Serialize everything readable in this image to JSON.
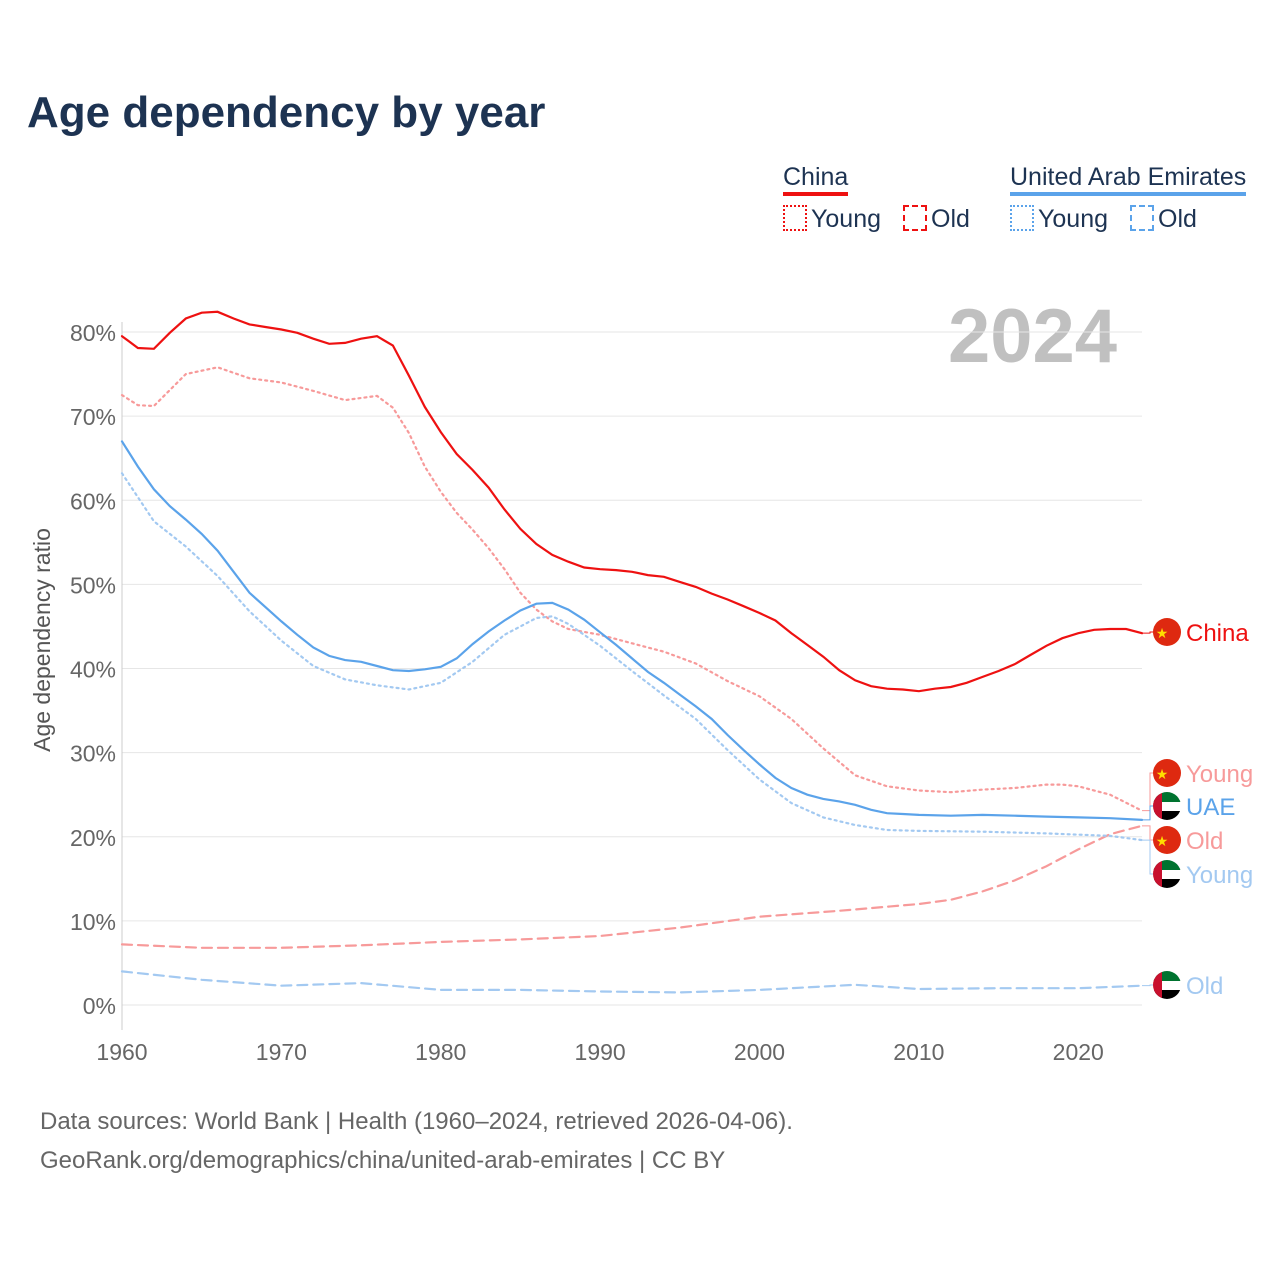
{
  "title": "Age dependency by year",
  "legend": {
    "china": {
      "name": "China",
      "young": "Young",
      "old": "Old",
      "color": "#ee1111",
      "light": "#f79a9a"
    },
    "uae": {
      "name": "United Arab Emirates",
      "young": "Young",
      "old": "Old",
      "color": "#5ba3ea",
      "light": "#a3c9f1"
    }
  },
  "footer": {
    "line1": "Data sources: World Bank | Health (1960–2024, retrieved 2026-04-06).",
    "line2": "GeoRank.org/demographics/china/united-arab-emirates | CC BY"
  },
  "chart_data": {
    "type": "line",
    "title": "Age dependency by year",
    "year_label": "2024",
    "ylabel": "Age dependency ratio",
    "xlim": [
      1960,
      2024
    ],
    "ylim": [
      0,
      80
    ],
    "xticks": [
      "1960",
      "1970",
      "1980",
      "1990",
      "2000",
      "2010",
      "2020"
    ],
    "yticks": [
      "0%",
      "10%",
      "20%",
      "30%",
      "40%",
      "50%",
      "60%",
      "70%",
      "80%"
    ],
    "end_labels": [
      "China",
      "Young",
      "UAE",
      "Old",
      "Young",
      "Old"
    ],
    "series": [
      {
        "name": "China",
        "style": "solid",
        "color": "#ee1111",
        "points": [
          [
            1960,
            79.5
          ],
          [
            1961,
            78.1
          ],
          [
            1962,
            78
          ],
          [
            1963,
            79.9
          ],
          [
            1964,
            81.6
          ],
          [
            1965,
            82.3
          ],
          [
            1966,
            82.4
          ],
          [
            1967,
            81.6
          ],
          [
            1968,
            80.9
          ],
          [
            1969,
            80.6
          ],
          [
            1970,
            80.3
          ],
          [
            1971,
            79.9
          ],
          [
            1972,
            79.2
          ],
          [
            1973,
            78.6
          ],
          [
            1974,
            78.7
          ],
          [
            1975,
            79.2
          ],
          [
            1976,
            79.5
          ],
          [
            1977,
            78.4
          ],
          [
            1978,
            74.8
          ],
          [
            1979,
            71.1
          ],
          [
            1980,
            68.1
          ],
          [
            1981,
            65.5
          ],
          [
            1982,
            63.6
          ],
          [
            1983,
            61.5
          ],
          [
            1984,
            58.9
          ],
          [
            1985,
            56.6
          ],
          [
            1986,
            54.8
          ],
          [
            1987,
            53.5
          ],
          [
            1988,
            52.7
          ],
          [
            1989,
            52
          ],
          [
            1990,
            51.8
          ],
          [
            1991,
            51.7
          ],
          [
            1992,
            51.5
          ],
          [
            1993,
            51.1
          ],
          [
            1994,
            50.9
          ],
          [
            1995,
            50.3
          ],
          [
            1996,
            49.7
          ],
          [
            1997,
            48.9
          ],
          [
            1998,
            48.2
          ],
          [
            1999,
            47.4
          ],
          [
            2000,
            46.6
          ],
          [
            2001,
            45.7
          ],
          [
            2002,
            44.2
          ],
          [
            2003,
            42.8
          ],
          [
            2004,
            41.4
          ],
          [
            2005,
            39.8
          ],
          [
            2006,
            38.6
          ],
          [
            2007,
            37.9
          ],
          [
            2008,
            37.6
          ],
          [
            2009,
            37.5
          ],
          [
            2010,
            37.3
          ],
          [
            2011,
            37.6
          ],
          [
            2012,
            37.8
          ],
          [
            2013,
            38.3
          ],
          [
            2014,
            39
          ],
          [
            2015,
            39.7
          ],
          [
            2016,
            40.5
          ],
          [
            2017,
            41.6
          ],
          [
            2018,
            42.7
          ],
          [
            2019,
            43.6
          ],
          [
            2020,
            44.2
          ],
          [
            2021,
            44.6
          ],
          [
            2022,
            44.7
          ],
          [
            2023,
            44.7
          ],
          [
            2024,
            44.2
          ]
        ]
      },
      {
        "name": "China Young",
        "style": "dotted",
        "color": "#f79a9a",
        "points": [
          [
            1960,
            72.5
          ],
          [
            1961,
            71.3
          ],
          [
            1962,
            71.2
          ],
          [
            1964,
            75
          ],
          [
            1966,
            75.8
          ],
          [
            1968,
            74.5
          ],
          [
            1970,
            74
          ],
          [
            1972,
            73
          ],
          [
            1974,
            71.9
          ],
          [
            1976,
            72.4
          ],
          [
            1977,
            71
          ],
          [
            1978,
            68
          ],
          [
            1979,
            64
          ],
          [
            1980,
            61
          ],
          [
            1981,
            58.5
          ],
          [
            1982,
            56.5
          ],
          [
            1983,
            54.3
          ],
          [
            1984,
            51.8
          ],
          [
            1985,
            49
          ],
          [
            1986,
            47
          ],
          [
            1987,
            45.6
          ],
          [
            1988,
            44.7
          ],
          [
            1990,
            44
          ],
          [
            1992,
            43
          ],
          [
            1994,
            42
          ],
          [
            1996,
            40.6
          ],
          [
            1998,
            38.5
          ],
          [
            2000,
            36.7
          ],
          [
            2002,
            34
          ],
          [
            2004,
            30.5
          ],
          [
            2006,
            27.3
          ],
          [
            2008,
            26
          ],
          [
            2010,
            25.5
          ],
          [
            2012,
            25.3
          ],
          [
            2014,
            25.6
          ],
          [
            2016,
            25.8
          ],
          [
            2018,
            26.2
          ],
          [
            2019,
            26.2
          ],
          [
            2020,
            26
          ],
          [
            2022,
            25
          ],
          [
            2024,
            23.1
          ]
        ]
      },
      {
        "name": "China Old",
        "style": "dashed",
        "color": "#f79a9a",
        "points": [
          [
            1960,
            7.2
          ],
          [
            1965,
            6.8
          ],
          [
            1970,
            6.8
          ],
          [
            1975,
            7.1
          ],
          [
            1980,
            7.5
          ],
          [
            1985,
            7.8
          ],
          [
            1990,
            8.2
          ],
          [
            1995,
            9.2
          ],
          [
            2000,
            10.5
          ],
          [
            2005,
            11.2
          ],
          [
            2010,
            12
          ],
          [
            2012,
            12.5
          ],
          [
            2014,
            13.5
          ],
          [
            2016,
            14.8
          ],
          [
            2018,
            16.5
          ],
          [
            2020,
            18.5
          ],
          [
            2022,
            20.3
          ],
          [
            2024,
            21.3
          ]
        ]
      },
      {
        "name": "UAE",
        "style": "solid",
        "color": "#5ba3ea",
        "points": [
          [
            1960,
            67
          ],
          [
            1961,
            64
          ],
          [
            1962,
            61.3
          ],
          [
            1963,
            59.3
          ],
          [
            1964,
            57.7
          ],
          [
            1965,
            56
          ],
          [
            1966,
            54
          ],
          [
            1967,
            51.5
          ],
          [
            1968,
            49
          ],
          [
            1969,
            47.3
          ],
          [
            1970,
            45.6
          ],
          [
            1971,
            44
          ],
          [
            1972,
            42.5
          ],
          [
            1973,
            41.5
          ],
          [
            1974,
            41
          ],
          [
            1975,
            40.8
          ],
          [
            1976,
            40.3
          ],
          [
            1977,
            39.8
          ],
          [
            1978,
            39.7
          ],
          [
            1979,
            39.9
          ],
          [
            1980,
            40.2
          ],
          [
            1981,
            41.2
          ],
          [
            1982,
            42.9
          ],
          [
            1983,
            44.4
          ],
          [
            1984,
            45.7
          ],
          [
            1985,
            46.9
          ],
          [
            1986,
            47.7
          ],
          [
            1987,
            47.8
          ],
          [
            1988,
            47
          ],
          [
            1989,
            45.8
          ],
          [
            1990,
            44.3
          ],
          [
            1991,
            42.8
          ],
          [
            1992,
            41.2
          ],
          [
            1993,
            39.6
          ],
          [
            1994,
            38.3
          ],
          [
            1995,
            36.9
          ],
          [
            1996,
            35.5
          ],
          [
            1997,
            34
          ],
          [
            1998,
            32.1
          ],
          [
            1999,
            30.3
          ],
          [
            2000,
            28.6
          ],
          [
            2001,
            27
          ],
          [
            2002,
            25.8
          ],
          [
            2003,
            25
          ],
          [
            2004,
            24.5
          ],
          [
            2005,
            24.2
          ],
          [
            2006,
            23.8
          ],
          [
            2007,
            23.2
          ],
          [
            2008,
            22.8
          ],
          [
            2009,
            22.7
          ],
          [
            2010,
            22.6
          ],
          [
            2012,
            22.5
          ],
          [
            2014,
            22.6
          ],
          [
            2016,
            22.5
          ],
          [
            2018,
            22.4
          ],
          [
            2020,
            22.3
          ],
          [
            2022,
            22.2
          ],
          [
            2024,
            22.0
          ]
        ]
      },
      {
        "name": "UAE Young",
        "style": "dotted",
        "color": "#a3c9f1",
        "points": [
          [
            1960,
            63.2
          ],
          [
            1962,
            57.5
          ],
          [
            1964,
            54.5
          ],
          [
            1966,
            51
          ],
          [
            1968,
            46.8
          ],
          [
            1970,
            43.3
          ],
          [
            1972,
            40.3
          ],
          [
            1974,
            38.7
          ],
          [
            1976,
            38
          ],
          [
            1978,
            37.5
          ],
          [
            1980,
            38.3
          ],
          [
            1982,
            40.8
          ],
          [
            1984,
            44
          ],
          [
            1986,
            46
          ],
          [
            1987,
            46.2
          ],
          [
            1988,
            45.3
          ],
          [
            1990,
            42.7
          ],
          [
            1992,
            39.7
          ],
          [
            1994,
            36.8
          ],
          [
            1996,
            34
          ],
          [
            1998,
            30.3
          ],
          [
            2000,
            26.8
          ],
          [
            2002,
            24
          ],
          [
            2004,
            22.3
          ],
          [
            2006,
            21.4
          ],
          [
            2008,
            20.8
          ],
          [
            2010,
            20.7
          ],
          [
            2014,
            20.6
          ],
          [
            2018,
            20.4
          ],
          [
            2022,
            20.1
          ],
          [
            2024,
            19.6
          ]
        ]
      },
      {
        "name": "UAE Old",
        "style": "dashed",
        "color": "#a3c9f1",
        "points": [
          [
            1960,
            4
          ],
          [
            1965,
            3
          ],
          [
            1970,
            2.3
          ],
          [
            1975,
            2.6
          ],
          [
            1980,
            1.8
          ],
          [
            1985,
            1.8
          ],
          [
            1990,
            1.6
          ],
          [
            1995,
            1.5
          ],
          [
            2000,
            1.8
          ],
          [
            2006,
            2.4
          ],
          [
            2010,
            1.9
          ],
          [
            2015,
            2.0
          ],
          [
            2020,
            2.0
          ],
          [
            2024,
            2.3
          ]
        ]
      }
    ]
  }
}
